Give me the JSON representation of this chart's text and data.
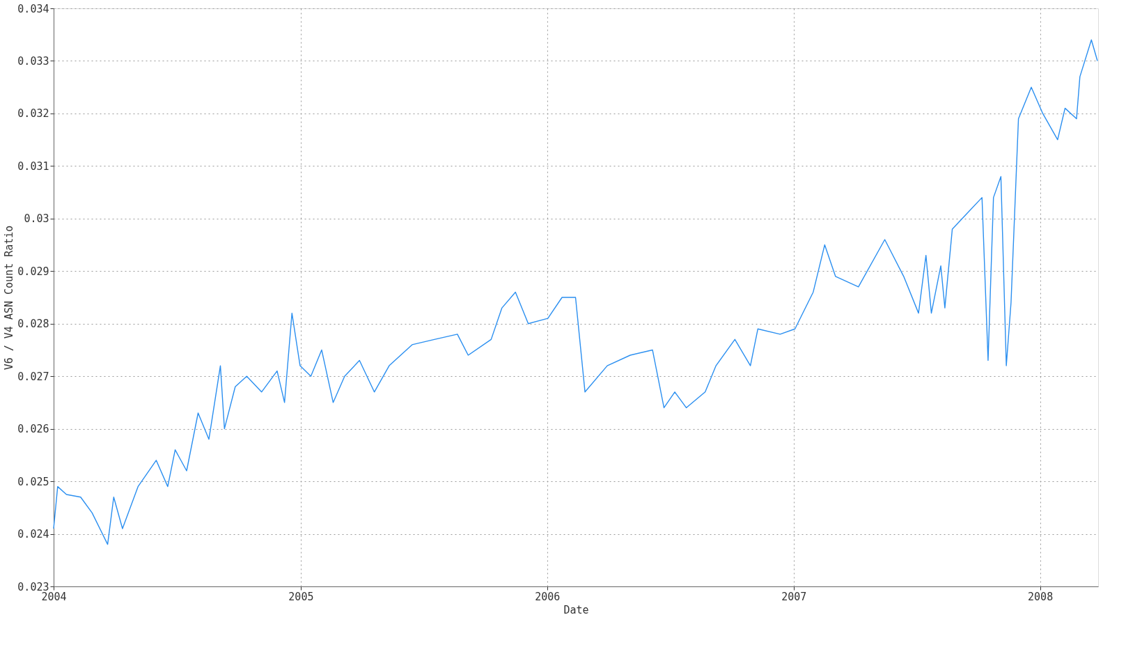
{
  "chart_data": {
    "type": "line",
    "xlabel": "Date",
    "ylabel": "V6 / V4 ASN Count Ratio",
    "x": [
      "2004-01-01",
      "2004-01-07",
      "2004-01-20",
      "2004-02-10",
      "2004-02-27",
      "2004-03-21",
      "2004-03-30",
      "2004-04-12",
      "2004-05-05",
      "2004-06-01",
      "2004-06-18",
      "2004-06-29",
      "2004-07-16",
      "2004-08-02",
      "2004-08-18",
      "2004-09-04",
      "2004-09-10",
      "2004-09-26",
      "2004-10-13",
      "2004-11-04",
      "2004-11-27",
      "2004-12-08",
      "2004-12-19",
      "2004-12-31",
      "2005-01-16",
      "2005-02-01",
      "2005-02-18",
      "2005-03-07",
      "2005-03-29",
      "2005-04-20",
      "2005-05-12",
      "2005-06-15",
      "2005-07-18",
      "2005-08-21",
      "2005-09-06",
      "2005-10-10",
      "2005-10-26",
      "2005-11-15",
      "2005-12-04",
      "2006-01-02",
      "2006-01-23",
      "2006-02-12",
      "2006-02-26",
      "2006-03-31",
      "2006-05-04",
      "2006-06-06",
      "2006-06-23",
      "2006-07-09",
      "2006-07-26",
      "2006-08-23",
      "2006-09-08",
      "2006-10-06",
      "2006-10-29",
      "2006-11-09",
      "2006-12-12",
      "2007-01-03",
      "2007-01-30",
      "2007-02-16",
      "2007-03-04",
      "2007-04-07",
      "2007-05-16",
      "2007-06-13",
      "2007-07-05",
      "2007-07-16",
      "2007-07-24",
      "2007-08-07",
      "2007-08-13",
      "2007-08-24",
      "2007-09-15",
      "2007-10-07",
      "2007-10-16",
      "2007-10-24",
      "2007-11-04",
      "2007-11-12",
      "2007-11-19",
      "2007-11-30",
      "2007-12-19",
      "2008-01-05",
      "2008-01-27",
      "2008-02-07",
      "2008-02-24",
      "2008-02-29",
      "2008-03-17",
      "2008-03-26"
    ],
    "series": [
      {
        "color": "#2b8ff0",
        "values": [
          0.0241,
          0.0249,
          0.02475,
          0.0247,
          0.0244,
          0.0238,
          0.0247,
          0.0241,
          0.0249,
          0.0254,
          0.0249,
          0.0256,
          0.0252,
          0.0263,
          0.0258,
          0.0272,
          0.026,
          0.0268,
          0.027,
          0.0267,
          0.0271,
          0.0265,
          0.0282,
          0.0272,
          0.027,
          0.0275,
          0.0265,
          0.027,
          0.0273,
          0.0267,
          0.0272,
          0.0276,
          0.0277,
          0.0278,
          0.0274,
          0.0277,
          0.0283,
          0.0286,
          0.028,
          0.0281,
          0.0285,
          0.0285,
          0.0267,
          0.0272,
          0.0274,
          0.0275,
          0.0264,
          0.0267,
          0.0264,
          0.0267,
          0.0272,
          0.0277,
          0.0272,
          0.0279,
          0.0278,
          0.0279,
          0.0286,
          0.0295,
          0.0289,
          0.0287,
          0.0296,
          0.0289,
          0.0282,
          0.0293,
          0.0282,
          0.0291,
          0.0283,
          0.0298,
          0.0301,
          0.0304,
          0.0273,
          0.0304,
          0.0308,
          0.0272,
          0.0284,
          0.0319,
          0.0325,
          0.032,
          0.0315,
          0.0321,
          0.0319,
          0.0327,
          0.0334,
          0.033
        ]
      }
    ],
    "xlim": [
      "2004-01-01",
      "2008-03-27"
    ],
    "xticks": [
      "2004",
      "2005",
      "2006",
      "2007",
      "2008"
    ],
    "ylim": [
      0.023,
      0.034
    ],
    "yticks": [
      0.023,
      0.024,
      0.025,
      0.026,
      0.027,
      0.028,
      0.029,
      0.03,
      0.031,
      0.032,
      0.033,
      0.034
    ],
    "grid": true,
    "line_style": "solid",
    "marker": "none"
  }
}
